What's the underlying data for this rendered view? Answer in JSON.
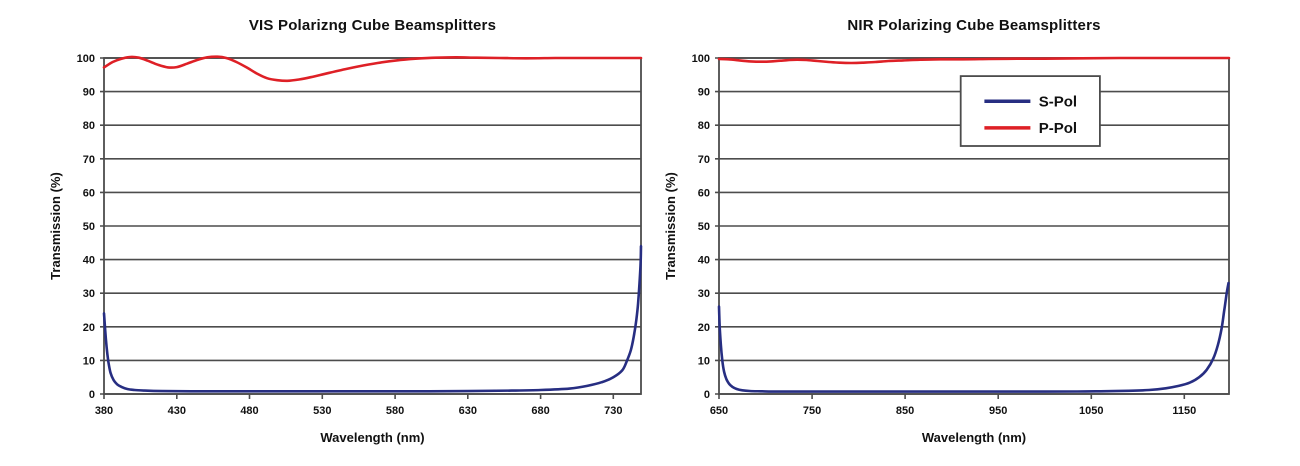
{
  "palette": {
    "s_pol_blue": "#272e82",
    "p_pol_red": "#de2026",
    "grid": "#4c4c4c",
    "text": "#111111",
    "background": "#ffffff"
  },
  "chart_data": [
    {
      "type": "line",
      "title": "VIS Polarizng Cube Beamsplitters",
      "xlabel": "Wavelength (nm)",
      "ylabel": "Transmission (%)",
      "xlim": [
        380,
        749
      ],
      "ylim": [
        0,
        100
      ],
      "xticks": [
        380,
        430,
        480,
        530,
        580,
        630,
        680,
        730
      ],
      "yticks": [
        0,
        10,
        20,
        30,
        40,
        50,
        60,
        70,
        80,
        90,
        100
      ],
      "grid": "horizontal",
      "legend": null,
      "series": [
        {
          "name": "S-Pol",
          "color": "#272e82",
          "points": [
            [
              380,
              24
            ],
            [
              380.8,
              19
            ],
            [
              381.8,
              14
            ],
            [
              383,
              9.5
            ],
            [
              384.5,
              6.3
            ],
            [
              386.5,
              4.2
            ],
            [
              389,
              2.9
            ],
            [
              392,
              2.1
            ],
            [
              396,
              1.5
            ],
            [
              401,
              1.2
            ],
            [
              408,
              1.0
            ],
            [
              420,
              0.85
            ],
            [
              440,
              0.8
            ],
            [
              470,
              0.8
            ],
            [
              510,
              0.8
            ],
            [
              550,
              0.8
            ],
            [
              590,
              0.8
            ],
            [
              630,
              0.85
            ],
            [
              660,
              1.0
            ],
            [
              680,
              1.2
            ],
            [
              700,
              1.6
            ],
            [
              712,
              2.4
            ],
            [
              722,
              3.5
            ],
            [
              730,
              5
            ],
            [
              736,
              7
            ],
            [
              739,
              9.5
            ],
            [
              742,
              13
            ],
            [
              744,
              17
            ],
            [
              745.8,
              22
            ],
            [
              747,
              27
            ],
            [
              748,
              33
            ],
            [
              748.7,
              39
            ],
            [
              749,
              44
            ]
          ]
        },
        {
          "name": "P-Pol",
          "color": "#de2026",
          "points": [
            [
              380,
              97.2
            ],
            [
              386,
              98.8
            ],
            [
              392,
              99.8
            ],
            [
              398,
              100.3
            ],
            [
              404,
              100.1
            ],
            [
              410,
              99.2
            ],
            [
              417,
              98.0
            ],
            [
              424,
              97.2
            ],
            [
              430,
              97.3
            ],
            [
              437,
              98.3
            ],
            [
              444,
              99.4
            ],
            [
              451,
              100.2
            ],
            [
              458,
              100.4
            ],
            [
              464,
              100.0
            ],
            [
              471,
              98.8
            ],
            [
              478,
              97.2
            ],
            [
              485,
              95.4
            ],
            [
              492,
              94.0
            ],
            [
              499,
              93.4
            ],
            [
              506,
              93.2
            ],
            [
              514,
              93.6
            ],
            [
              522,
              94.3
            ],
            [
              532,
              95.3
            ],
            [
              543,
              96.4
            ],
            [
              555,
              97.5
            ],
            [
              568,
              98.5
            ],
            [
              581,
              99.3
            ],
            [
              594,
              99.8
            ],
            [
              608,
              100.1
            ],
            [
              622,
              100.2
            ],
            [
              636,
              100.1
            ],
            [
              652,
              100.0
            ],
            [
              670,
              99.9
            ],
            [
              690,
              100.0
            ],
            [
              712,
              100.0
            ],
            [
              730,
              100.0
            ],
            [
              749,
              100.0
            ]
          ]
        }
      ]
    },
    {
      "type": "line",
      "title": "NIR Polarizing Cube Beamsplitters",
      "xlabel": "Wavelength (nm)",
      "ylabel": "Transmission (%)",
      "xlim": [
        650,
        1198
      ],
      "ylim": [
        0,
        100
      ],
      "xticks": [
        650,
        750,
        850,
        950,
        1050,
        1150
      ],
      "yticks": [
        0,
        10,
        20,
        30,
        40,
        50,
        60,
        70,
        80,
        90,
        100
      ],
      "grid": "horizontal",
      "legend": {
        "position": "inside-upper-right",
        "entries": [
          {
            "label": "S-Pol",
            "color": "#272e82"
          },
          {
            "label": "P-Pol",
            "color": "#de2026"
          }
        ]
      },
      "series": [
        {
          "name": "S-Pol",
          "color": "#272e82",
          "points": [
            [
              650,
              26
            ],
            [
              650.8,
              20
            ],
            [
              652,
              14.5
            ],
            [
              653.5,
              10
            ],
            [
              655.5,
              6.6
            ],
            [
              658,
              4.4
            ],
            [
              661,
              3.0
            ],
            [
              664.5,
              2.1
            ],
            [
              669,
              1.5
            ],
            [
              675,
              1.1
            ],
            [
              683,
              0.9
            ],
            [
              695,
              0.8
            ],
            [
              715,
              0.7
            ],
            [
              750,
              0.7
            ],
            [
              800,
              0.7
            ],
            [
              850,
              0.7
            ],
            [
              900,
              0.7
            ],
            [
              950,
              0.7
            ],
            [
              1000,
              0.7
            ],
            [
              1035,
              0.75
            ],
            [
              1060,
              0.8
            ],
            [
              1090,
              0.95
            ],
            [
              1112,
              1.2
            ],
            [
              1130,
              1.7
            ],
            [
              1144,
              2.4
            ],
            [
              1156,
              3.4
            ],
            [
              1166,
              5
            ],
            [
              1174,
              7.2
            ],
            [
              1181,
              10.5
            ],
            [
              1186,
              14.5
            ],
            [
              1190,
              19.5
            ],
            [
              1193,
              25
            ],
            [
              1195.5,
              30
            ],
            [
              1197.5,
              33
            ]
          ]
        },
        {
          "name": "P-Pol",
          "color": "#de2026",
          "points": [
            [
              650,
              99.7
            ],
            [
              660,
              99.6
            ],
            [
              672,
              99.3
            ],
            [
              684,
              99.0
            ],
            [
              696,
              98.9
            ],
            [
              706,
              99.0
            ],
            [
              716,
              99.2
            ],
            [
              726,
              99.4
            ],
            [
              734,
              99.5
            ],
            [
              744,
              99.4
            ],
            [
              756,
              99.1
            ],
            [
              768,
              98.8
            ],
            [
              780,
              98.6
            ],
            [
              792,
              98.5
            ],
            [
              804,
              98.6
            ],
            [
              818,
              98.8
            ],
            [
              832,
              99.1
            ],
            [
              848,
              99.3
            ],
            [
              866,
              99.5
            ],
            [
              888,
              99.6
            ],
            [
              912,
              99.6
            ],
            [
              940,
              99.7
            ],
            [
              970,
              99.8
            ],
            [
              1000,
              99.8
            ],
            [
              1040,
              99.9
            ],
            [
              1080,
              100.0
            ],
            [
              1120,
              100.0
            ],
            [
              1160,
              100.0
            ],
            [
              1198,
              100.0
            ]
          ]
        }
      ]
    }
  ]
}
